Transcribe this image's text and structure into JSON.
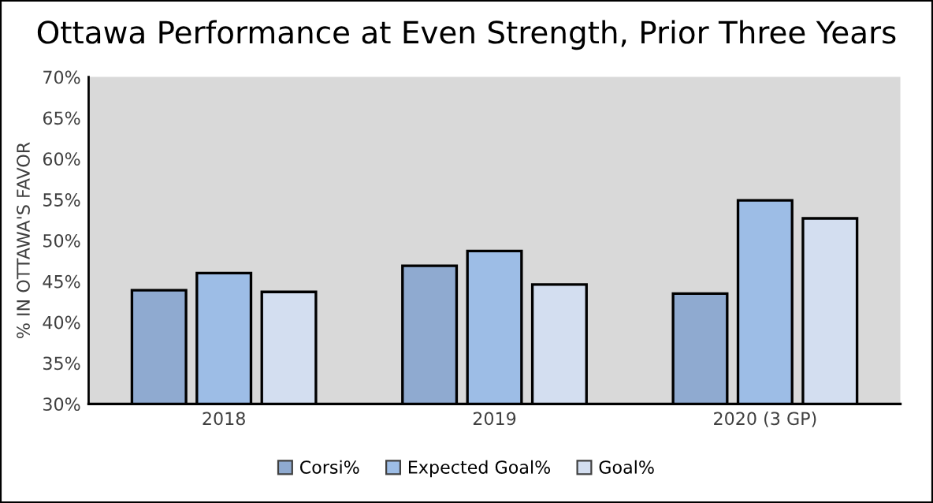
{
  "chart_data": {
    "type": "bar",
    "title": "Ottawa Performance at Even Strength, Prior Three Years",
    "ylabel": "% IN OTTAWA'S FAVOR",
    "categories": [
      "2018",
      "2019",
      "2020 (3 GP)"
    ],
    "series": [
      {
        "name": "Corsi%",
        "color": "#8faad0",
        "values": [
          43.9,
          46.9,
          43.5
        ]
      },
      {
        "name": "Expected Goal%",
        "color": "#9dbde6",
        "values": [
          46.0,
          48.7,
          54.9
        ]
      },
      {
        "name": "Goal%",
        "color": "#d3def0",
        "values": [
          43.7,
          44.6,
          52.7
        ]
      }
    ],
    "ylim": [
      30,
      70
    ],
    "yticks": [
      {
        "value": 30,
        "label": "30%"
      },
      {
        "value": 35,
        "label": "35%"
      },
      {
        "value": 40,
        "label": "40%"
      },
      {
        "value": 45,
        "label": "45%"
      },
      {
        "value": 50,
        "label": "50%"
      },
      {
        "value": 55,
        "label": "55%"
      },
      {
        "value": 60,
        "label": "60%"
      },
      {
        "value": 65,
        "label": "65%"
      },
      {
        "value": 70,
        "label": "70%"
      }
    ],
    "grid": false,
    "legend": "bottom"
  }
}
